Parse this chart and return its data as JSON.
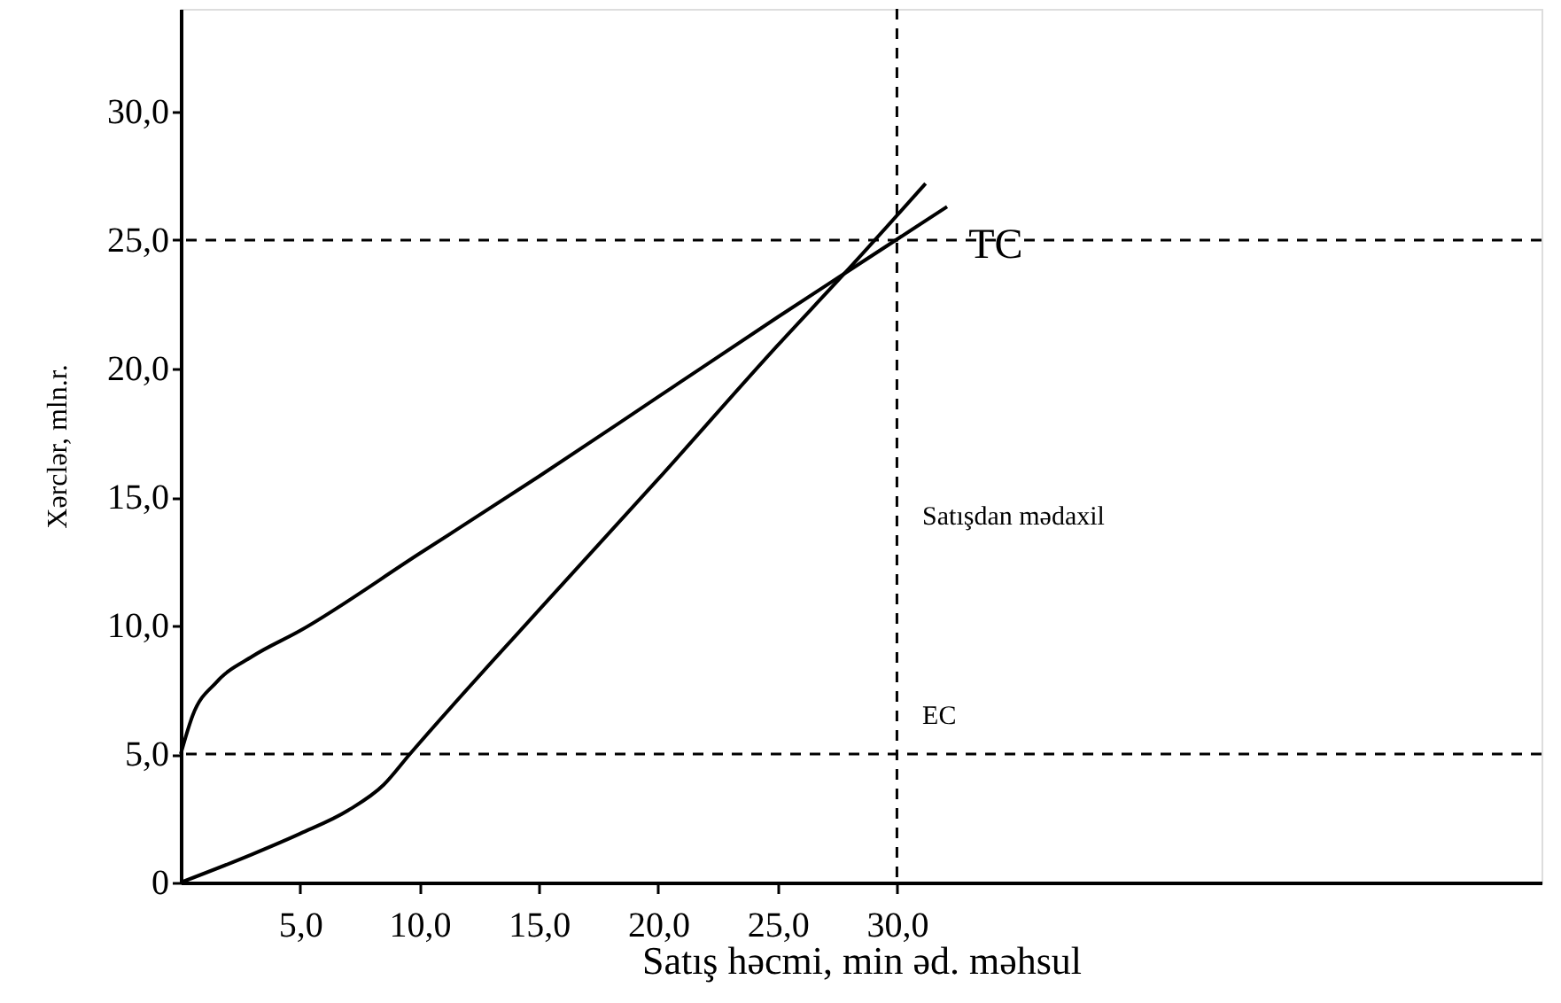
{
  "chart_data": {
    "type": "line",
    "xlabel": "Satış həcmi, min əd. məhsul",
    "ylabel": "Xərclər, mln.r.",
    "xlim": [
      0,
      57
    ],
    "ylim": [
      0,
      34
    ],
    "xticks": [
      {
        "value": 5,
        "label": "5,0"
      },
      {
        "value": 10,
        "label": "10,0"
      },
      {
        "value": 15,
        "label": "15,0"
      },
      {
        "value": 20,
        "label": "20,0"
      },
      {
        "value": 25,
        "label": "25,0"
      },
      {
        "value": 30,
        "label": "30,0"
      }
    ],
    "yticks": [
      0,
      {
        "value": 5,
        "label": "5,0"
      },
      {
        "value": 10,
        "label": "10,0"
      },
      {
        "value": 15,
        "label": "15,0"
      },
      {
        "value": 20,
        "label": "20,0"
      },
      {
        "value": 25,
        "label": "25,0"
      },
      {
        "value": 30,
        "label": "30,0"
      }
    ],
    "series": [
      {
        "color": "#000000",
        "x": [
          0,
          0.5,
          1.5,
          3,
          5,
          10,
          15,
          20,
          25,
          27.8,
          32.1
        ],
        "values": [
          5,
          6.5,
          7.8,
          8.8,
          9.8,
          12.8,
          15.8,
          18.9,
          22.0,
          23.7,
          26.3
        ]
      },
      {
        "color": "#000000",
        "x": [
          0,
          3,
          5,
          7,
          8.5,
          9.6,
          15,
          20,
          25,
          27.8,
          31.2
        ],
        "values": [
          0,
          1.1,
          1.9,
          2.8,
          3.8,
          5,
          10.6,
          15.7,
          20.9,
          23.7,
          27.2
        ]
      }
    ],
    "ref_lines": [
      {
        "axis": "y",
        "value": 5,
        "color": "#000000",
        "line_style": "dashed",
        "label": "EC"
      },
      {
        "axis": "y",
        "value": 25,
        "color": "#000000",
        "line_style": "dashed"
      },
      {
        "axis": "x",
        "value": 30,
        "color": "#000000",
        "line_style": "dashed"
      }
    ],
    "annotations": [
      {
        "text": "TC",
        "x": 33.0,
        "y": 24.8
      },
      "Satışdan mədaxil"
    ],
    "grid": false,
    "marker": "none",
    "line_style": "solid"
  }
}
